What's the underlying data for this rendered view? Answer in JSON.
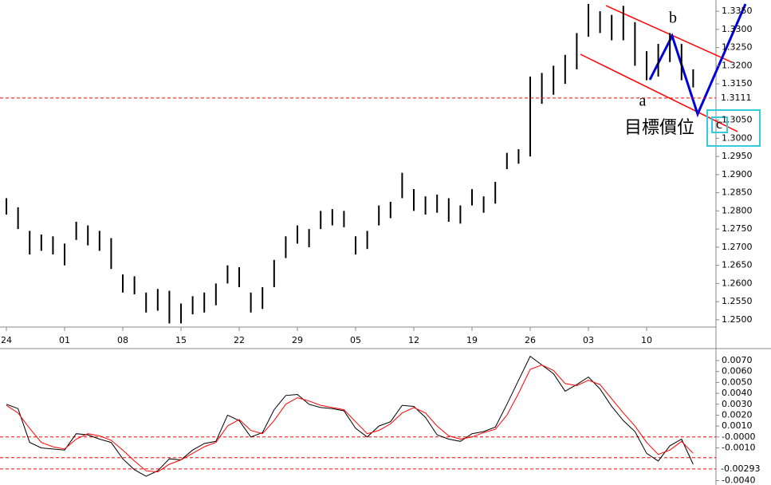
{
  "chart_data": [
    {
      "type": "ohlc",
      "xlim": [
        -0.55,
        60.96
      ],
      "xticks": [
        {
          "value": 0,
          "label": "24"
        },
        {
          "value": 5,
          "label": "01"
        },
        {
          "value": 10,
          "label": "08"
        },
        {
          "value": 15,
          "label": "15"
        },
        {
          "value": 20,
          "label": "22"
        },
        {
          "value": 25,
          "label": "29"
        },
        {
          "value": 30,
          "label": "05"
        },
        {
          "value": 35,
          "label": "12"
        },
        {
          "value": 40,
          "label": "19"
        },
        {
          "value": 45,
          "label": "26"
        },
        {
          "value": 50,
          "label": "03"
        },
        {
          "value": 55,
          "label": "10"
        }
      ],
      "ylim": [
        1.248,
        1.3381
      ],
      "yticks": [
        {
          "value": 1.335,
          "label": "1.3350"
        },
        {
          "value": 1.33,
          "label": "1.3300"
        },
        {
          "value": 1.325,
          "label": "1.3250"
        },
        {
          "value": 1.32,
          "label": "1.3200"
        },
        {
          "value": 1.315,
          "label": "1.3150"
        },
        {
          "value": 1.305,
          "label": "1.3050"
        },
        {
          "value": 1.3,
          "label": "1.3000"
        },
        {
          "value": 1.295,
          "label": "1.2950"
        },
        {
          "value": 1.29,
          "label": "1.2900"
        },
        {
          "value": 1.285,
          "label": "1.2850"
        },
        {
          "value": 1.28,
          "label": "1.2800"
        },
        {
          "value": 1.275,
          "label": "1.2750"
        },
        {
          "value": 1.27,
          "label": "1.2700"
        },
        {
          "value": 1.265,
          "label": "1.2650"
        },
        {
          "value": 1.26,
          "label": "1.2600"
        },
        {
          "value": 1.255,
          "label": "1.2550"
        },
        {
          "value": 1.25,
          "label": "1.2500"
        }
      ],
      "color": "#000000",
      "high": [
        1.2835,
        1.281,
        1.2745,
        1.2735,
        1.273,
        1.271,
        1.277,
        1.276,
        1.2745,
        1.2725,
        1.2625,
        1.262,
        1.2575,
        1.2585,
        1.258,
        1.2545,
        1.2565,
        1.2575,
        1.26,
        1.265,
        1.2645,
        1.2575,
        1.259,
        1.2665,
        1.273,
        1.276,
        1.275,
        1.28,
        1.2805,
        1.28,
        1.273,
        1.2745,
        1.2815,
        1.2825,
        1.2905,
        1.286,
        1.284,
        1.2845,
        1.2835,
        1.2815,
        1.286,
        1.284,
        1.288,
        1.296,
        1.297,
        1.317,
        1.318,
        1.32,
        1.323,
        1.329,
        1.337,
        1.335,
        1.334,
        1.3365,
        1.332,
        1.324,
        1.326,
        1.329,
        1.326,
        1.319
      ],
      "low": [
        1.279,
        1.275,
        1.268,
        1.269,
        1.268,
        1.265,
        1.272,
        1.2705,
        1.269,
        1.264,
        1.2575,
        1.257,
        1.252,
        1.2525,
        1.249,
        1.249,
        1.2515,
        1.252,
        1.254,
        1.26,
        1.259,
        1.252,
        1.253,
        1.259,
        1.267,
        1.271,
        1.27,
        1.275,
        1.276,
        1.2755,
        1.268,
        1.2695,
        1.276,
        1.278,
        1.2835,
        1.28,
        1.279,
        1.2795,
        1.277,
        1.2765,
        1.2815,
        1.2795,
        1.282,
        1.2915,
        1.293,
        1.295,
        1.3095,
        1.312,
        1.315,
        1.319,
        1.328,
        1.329,
        1.327,
        1.327,
        1.32,
        1.316,
        1.317,
        1.321,
        1.316,
        1.314
      ],
      "marked_level": 1.3111,
      "level_color": "#ff0000",
      "annotations": [
        "a",
        "b",
        "c",
        "目標價位"
      ]
    },
    {
      "type": "line",
      "xlim": [
        -0.55,
        60.96
      ],
      "ylim": [
        -0.0044,
        0.0081
      ],
      "yticks": [
        {
          "value": 0.007,
          "label": "0.0070"
        },
        {
          "value": 0.006,
          "label": "0.0060"
        },
        {
          "value": 0.005,
          "label": "0.0050"
        },
        {
          "value": 0.004,
          "label": "0.0040"
        },
        {
          "value": 0.003,
          "label": "0.0030"
        },
        {
          "value": 0.002,
          "label": "0.0020"
        },
        {
          "value": 0.001,
          "label": "0.0010"
        },
        {
          "value": 0,
          "label": "-0.0000"
        },
        {
          "value": -0.001,
          "label": "-0.0010"
        },
        {
          "value": -0.004,
          "label": "-0.0040"
        }
      ],
      "levels": [
        0,
        -0.0019
      ],
      "marked_level": -0.00293,
      "level_color": "#ff0000",
      "series": [
        {
          "color": "#000000",
          "values": [
            0.003,
            0.0026,
            -0.0005,
            -0.001,
            -0.0011,
            -0.0012,
            0.0003,
            0.0002,
            -0.0002,
            -0.0005,
            -0.002,
            -0.003,
            -0.0036,
            -0.0031,
            -0.002,
            -0.0021,
            -0.0012,
            -0.0006,
            -0.0004,
            0.002,
            0.0015,
            0.0,
            0.0004,
            0.0025,
            0.0038,
            0.0039,
            0.003,
            0.0027,
            0.0026,
            0.0024,
            0.0008,
            0.0,
            0.001,
            0.0014,
            0.0029,
            0.0028,
            0.0018,
            0.0002,
            -0.0002,
            -0.0004,
            0.0003,
            0.0005,
            0.0009,
            0.003,
            0.0052,
            0.0074,
            0.0066,
            0.0058,
            0.0042,
            0.0048,
            0.0055,
            0.0044,
            0.0028,
            0.0015,
            0.0005,
            -0.0015,
            -0.0022,
            -0.0008,
            -0.0002,
            -0.0025
          ]
        },
        {
          "color": "#ff0000",
          "values": [
            0.0029,
            0.0022,
            0.0008,
            -0.0005,
            -0.0009,
            -0.0011,
            -0.0002,
            0.0003,
            0.0001,
            -0.0003,
            -0.0012,
            -0.0022,
            -0.0031,
            -0.0032,
            -0.0025,
            -0.0021,
            -0.0015,
            -0.0009,
            -0.0005,
            0.001,
            0.0016,
            0.0006,
            0.0003,
            0.0015,
            0.003,
            0.0036,
            0.0033,
            0.0029,
            0.0027,
            0.0025,
            0.0014,
            0.0003,
            0.0006,
            0.0012,
            0.0022,
            0.0027,
            0.0022,
            0.001,
            0.0001,
            -0.0002,
            0.0,
            0.0004,
            0.0007,
            0.002,
            0.004,
            0.0062,
            0.0066,
            0.0061,
            0.0049,
            0.0047,
            0.0052,
            0.0048,
            0.0035,
            0.0022,
            0.001,
            -0.0005,
            -0.0016,
            -0.0012,
            -0.0004,
            -0.0015
          ]
        }
      ]
    }
  ]
}
